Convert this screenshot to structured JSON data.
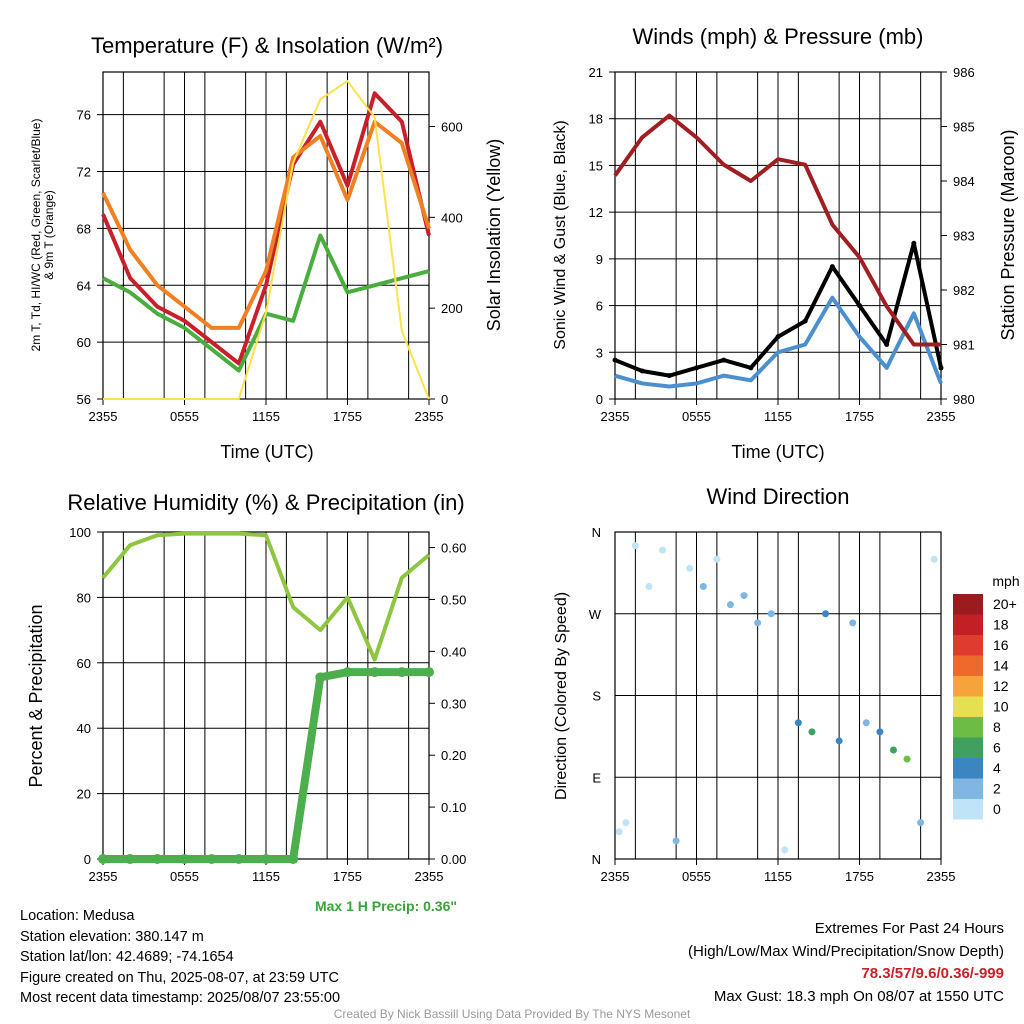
{
  "panels": {
    "temperature": {
      "title": "Temperature (F) & Insolation (W/m²)",
      "ylabel_left_line1": "2m T, Td, HI/WC (Red, Green, Scarlet/Blue)",
      "ylabel_left_line2": "& 9m T (Orange)",
      "ylabel_right": "Solar Insolation (Yellow)",
      "xlabel": "Time (UTC)"
    },
    "winds": {
      "title": "Winds (mph) & Pressure (mb)",
      "ylabel_left": "Sonic Wind & Gust (Blue, Black)",
      "ylabel_right": "Station Pressure (Maroon)",
      "xlabel": "Time (UTC)"
    },
    "humidity": {
      "title": "Relative Humidity (%) & Precipitation (in)",
      "ylabel_left": "Percent & Precipitation",
      "precip_note": "Max 1 H Precip: 0.36\""
    },
    "direction": {
      "title": "Wind Direction",
      "ylabel_left": "Direction (Colored By Speed)",
      "legend_title": "mph",
      "legend_labels": [
        "20+",
        "18",
        "16",
        "14",
        "12",
        "10",
        "8",
        "6",
        "4",
        "2",
        "0"
      ],
      "legend_colors": [
        "#9b1c1f",
        "#c21f26",
        "#df3b2f",
        "#ee6a2c",
        "#f7a33b",
        "#e7df52",
        "#6dbd45",
        "#3fa05f",
        "#3b86c1",
        "#7fb6e2",
        "#bfe4f8"
      ]
    }
  },
  "chart_data": [
    {
      "type": "line",
      "title": "Temperature (F) & Insolation (W/m²)",
      "xlabel": "Time (UTC)",
      "x_ticks": [
        "2355",
        "0555",
        "1155",
        "1755",
        "2355"
      ],
      "x": [
        "2355",
        "0155",
        "0355",
        "0555",
        "0755",
        "0955",
        "1155",
        "1355",
        "1555",
        "1755",
        "1955",
        "2155",
        "2355"
      ],
      "ylim": [
        56,
        79
      ],
      "y_ticks": [
        "56",
        "60",
        "64",
        "68",
        "72",
        "76"
      ],
      "y2lim": [
        0,
        720
      ],
      "y2_ticks": [
        "0",
        "200",
        "400",
        "600"
      ],
      "series": [
        {
          "name": "2m T (Red)",
          "color": "#c8202a",
          "values": [
            69,
            64.5,
            62.5,
            61.5,
            60,
            58.5,
            64,
            72.5,
            75.5,
            71,
            77.5,
            75.5,
            67.5
          ]
        },
        {
          "name": "Td (Green)",
          "color": "#4aae3e",
          "values": [
            64.5,
            63.5,
            62,
            61,
            59.5,
            58,
            62,
            61.5,
            67.5,
            63.5,
            64,
            64.5,
            65
          ]
        },
        {
          "name": "9m T (Orange)",
          "color": "#f08024",
          "values": [
            70.5,
            66.5,
            64,
            62.5,
            61,
            61,
            65,
            73,
            74.5,
            70,
            75.5,
            74,
            68
          ]
        },
        {
          "name": "Solar Insolation (Yellow)",
          "axis": "right",
          "color": "#ffe14d",
          "values": [
            0,
            0,
            0,
            0,
            0,
            0,
            190,
            520,
            660,
            700,
            620,
            150,
            0
          ]
        }
      ]
    },
    {
      "type": "line",
      "title": "Winds (mph) & Pressure (mb)",
      "xlabel": "Time (UTC)",
      "x_ticks": [
        "2355",
        "0555",
        "1155",
        "1755",
        "2355"
      ],
      "x": [
        "2355",
        "0155",
        "0355",
        "0555",
        "0755",
        "0955",
        "1155",
        "1355",
        "1555",
        "1755",
        "1955",
        "2155",
        "2355"
      ],
      "ylim": [
        0,
        21
      ],
      "y_ticks": [
        "0",
        "3",
        "6",
        "9",
        "12",
        "15",
        "18",
        "21"
      ],
      "y2lim": [
        980,
        986
      ],
      "y2_ticks": [
        "980",
        "981",
        "982",
        "983",
        "984",
        "985",
        "986"
      ],
      "series": [
        {
          "name": "Sonic Wind (Blue)",
          "color": "#4b8fcf",
          "values": [
            1.5,
            1,
            0.8,
            1,
            1.5,
            1.2,
            3,
            3.5,
            6.5,
            4,
            2,
            5.5,
            1
          ]
        },
        {
          "name": "Gust (Black)",
          "color": "#000000",
          "values": [
            2.5,
            1.8,
            1.5,
            2,
            2.5,
            2,
            4,
            5,
            8.5,
            6,
            3.5,
            10,
            2
          ]
        },
        {
          "name": "Station Pressure (Maroon)",
          "axis": "right",
          "color": "#a01e22",
          "values": [
            984.1,
            984.8,
            985.2,
            984.8,
            984.3,
            984.0,
            984.4,
            984.3,
            983.2,
            982.6,
            981.7,
            981.0,
            981.0
          ]
        }
      ]
    },
    {
      "type": "line",
      "title": "Relative Humidity (%) & Precipitation (in)",
      "x_ticks": [
        "2355",
        "0555",
        "1155",
        "1755",
        "2355"
      ],
      "x": [
        "2355",
        "0155",
        "0355",
        "0555",
        "0755",
        "0955",
        "1155",
        "1355",
        "1555",
        "1755",
        "1955",
        "2155",
        "2355"
      ],
      "ylim": [
        0,
        100
      ],
      "y_ticks": [
        "0",
        "20",
        "40",
        "60",
        "80",
        "100"
      ],
      "y2lim": [
        0,
        0.63
      ],
      "y2_ticks": [
        "0.00",
        "0.10",
        "0.20",
        "0.30",
        "0.40",
        "0.50",
        "0.60"
      ],
      "series": [
        {
          "name": "Relative Humidity",
          "color": "#8ec63f",
          "values": [
            86,
            96,
            99,
            99.5,
            99.5,
            99.5,
            99,
            77,
            70,
            80,
            61,
            86,
            93
          ]
        },
        {
          "name": "Precipitation",
          "axis": "right",
          "color": "#4cae4c",
          "values": [
            0,
            0,
            0,
            0,
            0,
            0,
            0,
            0,
            0.35,
            0.36,
            0.36,
            0.36,
            0.36
          ]
        }
      ],
      "annotations": [
        "Max 1 H Precip: 0.36\""
      ]
    },
    {
      "type": "scatter",
      "title": "Wind Direction",
      "ylabel": "Direction (Colored By Speed)",
      "x_ticks": [
        "2355",
        "0555",
        "1155",
        "1755",
        "2355"
      ],
      "y_ticks": [
        "N",
        "E",
        "S",
        "W",
        "N"
      ],
      "ylim": [
        0,
        360
      ],
      "color_legend": {
        "title": "mph",
        "labels": [
          "20+",
          "18",
          "16",
          "14",
          "12",
          "10",
          "8",
          "6",
          "4",
          "2",
          "0"
        ]
      },
      "points": [
        {
          "t": 0.3,
          "dir": 30,
          "speed": 1
        },
        {
          "t": 0.8,
          "dir": 40,
          "speed": 1
        },
        {
          "t": 1.5,
          "dir": 345,
          "speed": 1
        },
        {
          "t": 2.5,
          "dir": 300,
          "speed": 1
        },
        {
          "t": 3.5,
          "dir": 340,
          "speed": 1
        },
        {
          "t": 4.5,
          "dir": 20,
          "speed": 2
        },
        {
          "t": 5.5,
          "dir": 320,
          "speed": 1
        },
        {
          "t": 6.5,
          "dir": 300,
          "speed": 2
        },
        {
          "t": 7.5,
          "dir": 330,
          "speed": 1
        },
        {
          "t": 8.5,
          "dir": 280,
          "speed": 2
        },
        {
          "t": 9.5,
          "dir": 290,
          "speed": 2
        },
        {
          "t": 10.5,
          "dir": 260,
          "speed": 3
        },
        {
          "t": 11.5,
          "dir": 270,
          "speed": 3
        },
        {
          "t": 12.5,
          "dir": 10,
          "speed": 1
        },
        {
          "t": 13.5,
          "dir": 150,
          "speed": 4
        },
        {
          "t": 14.5,
          "dir": 140,
          "speed": 6
        },
        {
          "t": 15.5,
          "dir": 270,
          "speed": 5
        },
        {
          "t": 16.5,
          "dir": 130,
          "speed": 4
        },
        {
          "t": 17.5,
          "dir": 260,
          "speed": 3
        },
        {
          "t": 18.5,
          "dir": 150,
          "speed": 3
        },
        {
          "t": 19.5,
          "dir": 140,
          "speed": 5
        },
        {
          "t": 20.5,
          "dir": 120,
          "speed": 7
        },
        {
          "t": 21.5,
          "dir": 110,
          "speed": 9
        },
        {
          "t": 22.5,
          "dir": 40,
          "speed": 2
        },
        {
          "t": 23.5,
          "dir": 330,
          "speed": 1
        }
      ]
    }
  ],
  "info": {
    "location": "Location: Medusa",
    "elevation": "Station elevation: 380.147 m",
    "latlon": "Station lat/lon: 42.4689; -74.1654",
    "created": "Figure created on Thu, 2025-08-07, at 23:59 UTC",
    "recent": "Most recent data timestamp: 2025/08/07 23:55:00"
  },
  "extremes": {
    "heading": "Extremes For Past 24 Hours",
    "subheading": "(High/Low/Max Wind/Precipitation/Snow Depth)",
    "values": "78.3/57/9.6/0.36/-999",
    "max_gust": "Max Gust: 18.3 mph On 08/07 at 1550 UTC"
  },
  "footer": "Created By Nick Bassill Using Data Provided By The NYS Mesonet"
}
